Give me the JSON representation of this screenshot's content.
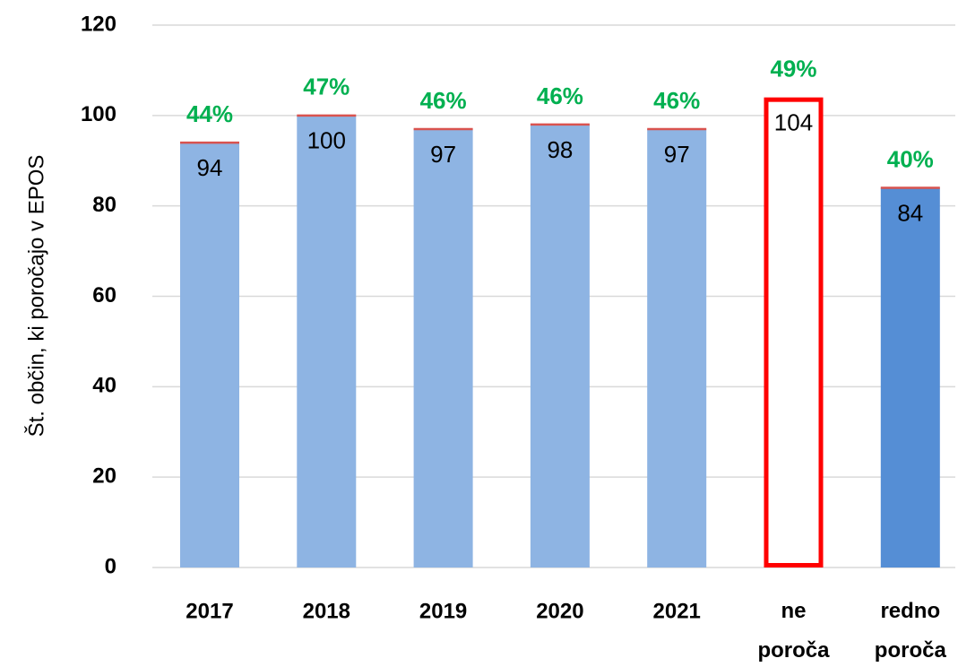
{
  "chart_data": {
    "type": "bar",
    "y_axis_label": "Št. občin, ki poročajo v EPOS",
    "categories": [
      "2017",
      "2018",
      "2019",
      "2020",
      "2021",
      "ne poroča",
      "redno poroča"
    ],
    "values": [
      94,
      100,
      97,
      98,
      97,
      104,
      84
    ],
    "shares": [
      44,
      47,
      46,
      46,
      46,
      49,
      40
    ],
    "share_labels": [
      "44%",
      "47%",
      "46%",
      "46%",
      "46%",
      "49%",
      "40%"
    ],
    "colors": [
      "#8eb4e3",
      "#8eb4e3",
      "#8eb4e3",
      "#8eb4e3",
      "#8eb4e3",
      "#ffffff",
      "#558ed5"
    ],
    "outline_colors": [
      null,
      null,
      null,
      null,
      null,
      "#ff0000",
      null
    ],
    "cap_color": "#d9534f",
    "ylim": [
      0,
      120
    ],
    "yticks": [
      0,
      20,
      40,
      60,
      80,
      100,
      120
    ],
    "grid": true
  }
}
